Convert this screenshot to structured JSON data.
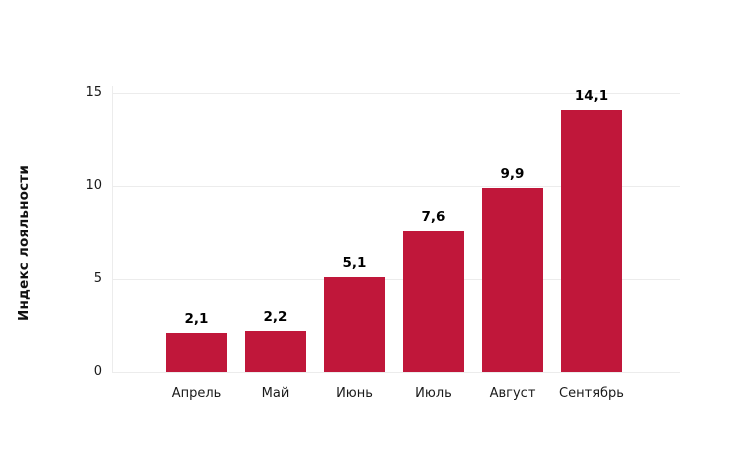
{
  "chart_data": {
    "type": "bar",
    "title": "",
    "xlabel": "",
    "ylabel": "Индекс лояльности",
    "categories": [
      "Апрель",
      "Май",
      "Июнь",
      "Июль",
      "Август",
      "Сентябрь"
    ],
    "values": [
      2.1,
      2.2,
      5.1,
      7.6,
      9.9,
      14.1
    ],
    "value_labels": [
      "2,1",
      "2,2",
      "5,1",
      "7,6",
      "9,9",
      "14,1"
    ],
    "yticks": [
      0,
      5,
      10,
      15
    ],
    "ylim": [
      0,
      15
    ],
    "grid": true,
    "legend": false,
    "colors": {
      "bar": "#C0173A",
      "gridline": "#ECECEC",
      "axis_line": "#ECECEC",
      "tick_text": "#1a1a1a",
      "value_text": "#000000",
      "background": "#ffffff"
    }
  }
}
